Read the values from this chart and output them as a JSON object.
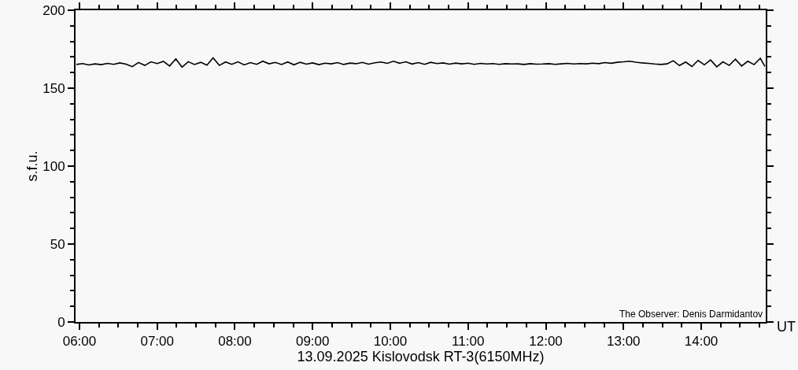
{
  "chart_data": {
    "type": "line",
    "xlabel": "13.09.2025 Kislovodsk RT-3(6150MHz)",
    "ylabel": "s.f.u.",
    "annotations": [
      "The Observer: Denis Darmidantov",
      "UT"
    ],
    "xlim": [
      5.95,
      14.83
    ],
    "ylim": [
      0,
      200
    ],
    "xticks": [
      {
        "value": 6,
        "label": "06:00"
      },
      {
        "value": 6.25,
        "label": null
      },
      {
        "value": 6.5,
        "label": null
      },
      {
        "value": 6.75,
        "label": null
      },
      {
        "value": 7,
        "label": "07:00"
      },
      {
        "value": 7.25,
        "label": null
      },
      {
        "value": 7.5,
        "label": null
      },
      {
        "value": 7.75,
        "label": null
      },
      {
        "value": 8,
        "label": "08:00"
      },
      {
        "value": 8.25,
        "label": null
      },
      {
        "value": 8.5,
        "label": null
      },
      {
        "value": 8.75,
        "label": null
      },
      {
        "value": 9,
        "label": "09:00"
      },
      {
        "value": 9.25,
        "label": null
      },
      {
        "value": 9.5,
        "label": null
      },
      {
        "value": 9.75,
        "label": null
      },
      {
        "value": 10,
        "label": "10:00"
      },
      {
        "value": 10.25,
        "label": null
      },
      {
        "value": 10.5,
        "label": null
      },
      {
        "value": 10.75,
        "label": null
      },
      {
        "value": 11,
        "label": "11:00"
      },
      {
        "value": 11.25,
        "label": null
      },
      {
        "value": 11.5,
        "label": null
      },
      {
        "value": 11.75,
        "label": null
      },
      {
        "value": 12,
        "label": "12:00"
      },
      {
        "value": 12.25,
        "label": null
      },
      {
        "value": 12.5,
        "label": null
      },
      {
        "value": 12.75,
        "label": null
      },
      {
        "value": 13,
        "label": "13:00"
      },
      {
        "value": 13.25,
        "label": null
      },
      {
        "value": 13.5,
        "label": null
      },
      {
        "value": 13.75,
        "label": null
      },
      {
        "value": 14,
        "label": "14:00"
      },
      {
        "value": 14.25,
        "label": null
      },
      {
        "value": 14.5,
        "label": null
      },
      {
        "value": 14.75,
        "label": null
      }
    ],
    "yticks": [
      0,
      {
        "value": 10,
        "label": null
      },
      {
        "value": 20,
        "label": null
      },
      {
        "value": 30,
        "label": null
      },
      {
        "value": 40,
        "label": null
      },
      50,
      {
        "value": 60,
        "label": null
      },
      {
        "value": 70,
        "label": null
      },
      {
        "value": 80,
        "label": null
      },
      {
        "value": 90,
        "label": null
      },
      100,
      {
        "value": 110,
        "label": null
      },
      {
        "value": 120,
        "label": null
      },
      {
        "value": 130,
        "label": null
      },
      {
        "value": 140,
        "label": null
      },
      150,
      {
        "value": 160,
        "label": null
      },
      {
        "value": 170,
        "label": null
      },
      {
        "value": 180,
        "label": null
      },
      {
        "value": 190,
        "label": null
      },
      200
    ],
    "series": [
      {
        "color": "#000000",
        "x": [
          5.96,
          6.04,
          6.12,
          6.2,
          6.28,
          6.36,
          6.44,
          6.52,
          6.6,
          6.68,
          6.76,
          6.84,
          6.92,
          7.0,
          7.08,
          7.16,
          7.24,
          7.32,
          7.4,
          7.48,
          7.56,
          7.64,
          7.72,
          7.8,
          7.88,
          7.96,
          8.04,
          8.12,
          8.2,
          8.28,
          8.36,
          8.44,
          8.52,
          8.6,
          8.68,
          8.76,
          8.84,
          8.92,
          9.0,
          9.08,
          9.16,
          9.24,
          9.32,
          9.4,
          9.48,
          9.56,
          9.64,
          9.72,
          9.8,
          9.88,
          9.96,
          10.04,
          10.12,
          10.2,
          10.28,
          10.36,
          10.44,
          10.52,
          10.6,
          10.68,
          10.76,
          10.84,
          10.92,
          11.0,
          11.08,
          11.16,
          11.24,
          11.32,
          11.4,
          11.48,
          11.56,
          11.64,
          11.72,
          11.8,
          11.88,
          11.96,
          12.04,
          12.12,
          12.2,
          12.28,
          12.36,
          12.44,
          12.52,
          12.6,
          12.68,
          12.76,
          12.84,
          12.92,
          13.0,
          13.08,
          13.16,
          13.24,
          13.32,
          13.4,
          13.48,
          13.56,
          13.64,
          13.72,
          13.8,
          13.88,
          13.96,
          14.04,
          14.12,
          14.2,
          14.28,
          14.36,
          14.44,
          14.52,
          14.6,
          14.68,
          14.76,
          14.82
        ],
        "values": [
          165.2,
          165.8,
          164.9,
          165.6,
          165.1,
          165.9,
          165.3,
          166.2,
          165.4,
          163.8,
          166.5,
          164.6,
          166.9,
          165.8,
          167.2,
          164.2,
          168.8,
          163.5,
          167.0,
          165.2,
          166.6,
          164.8,
          169.4,
          164.6,
          166.8,
          165.3,
          166.9,
          164.9,
          166.4,
          165.3,
          167.3,
          165.6,
          166.5,
          165.2,
          166.8,
          165.0,
          166.6,
          165.4,
          166.2,
          165.1,
          166.0,
          165.6,
          166.4,
          165.2,
          166.1,
          165.7,
          166.5,
          165.4,
          166.3,
          166.8,
          165.9,
          167.3,
          166.0,
          166.9,
          165.5,
          166.4,
          165.3,
          166.6,
          165.8,
          166.2,
          165.4,
          166.1,
          165.6,
          166.0,
          165.3,
          165.9,
          165.5,
          165.8,
          165.3,
          165.7,
          165.5,
          165.6,
          165.2,
          165.7,
          165.4,
          165.5,
          165.7,
          165.3,
          165.6,
          165.9,
          165.5,
          165.8,
          165.6,
          166.0,
          165.7,
          166.4,
          166.0,
          166.6,
          166.9,
          167.3,
          166.7,
          166.2,
          165.9,
          165.5,
          165.2,
          165.6,
          167.6,
          164.5,
          166.8,
          163.9,
          167.8,
          165.0,
          168.1,
          163.7,
          166.9,
          164.6,
          168.6,
          164.2,
          167.3,
          165.1,
          169.2,
          164.0
        ]
      }
    ]
  }
}
